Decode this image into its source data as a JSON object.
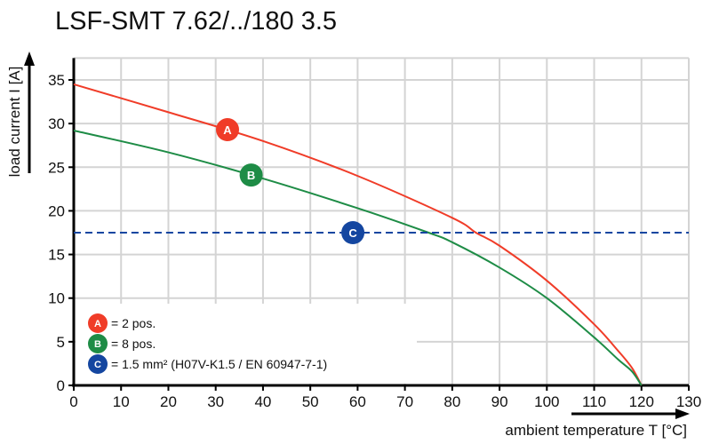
{
  "chart_data": {
    "type": "line",
    "title": "LSF-SMT 7.62/../180 3.5",
    "xlabel": "ambient temperature T [°C]",
    "ylabel": "load current I [A]",
    "xlim": [
      0,
      130
    ],
    "ylim": [
      0,
      37.5
    ],
    "xticks": [
      0,
      10,
      20,
      30,
      40,
      50,
      60,
      70,
      80,
      90,
      100,
      110,
      120,
      130
    ],
    "yticks": [
      0,
      5,
      10,
      15,
      20,
      25,
      30,
      35
    ],
    "grid": true,
    "series": [
      {
        "marker": "A",
        "color": "#f03c28",
        "x": [
          0,
          20,
          40,
          60,
          80,
          85,
          90,
          100,
          110,
          115,
          118,
          120
        ],
        "y": [
          34.5,
          31.3,
          28.0,
          24.0,
          19.2,
          17.5,
          16.0,
          12.0,
          7.0,
          4.0,
          2.0,
          0
        ]
      },
      {
        "marker": "B",
        "color": "#1e8c46",
        "x": [
          0,
          20,
          40,
          60,
          75,
          80,
          90,
          100,
          110,
          115,
          118,
          120
        ],
        "y": [
          29.2,
          26.7,
          23.7,
          20.3,
          17.5,
          16.4,
          13.5,
          10.0,
          5.5,
          3.0,
          1.6,
          0
        ]
      },
      {
        "marker": "C",
        "color": "#1446a0",
        "style": "dashed",
        "x": [
          0,
          130
        ],
        "y": [
          17.5,
          17.5
        ]
      }
    ],
    "markers": [
      {
        "label": "A",
        "x": 32.5,
        "y": 29.3,
        "color": "#f03c28"
      },
      {
        "label": "B",
        "x": 37.5,
        "y": 24.1,
        "color": "#1e8c46"
      },
      {
        "label": "C",
        "x": 59,
        "y": 17.5,
        "color": "#1446a0"
      }
    ],
    "legend": {
      "placement": "bottom-left",
      "items": [
        {
          "marker": "A",
          "text": "= 2 pos.",
          "color": "#f03c28"
        },
        {
          "marker": "B",
          "text": "= 8 pos.",
          "color": "#1e8c46"
        },
        {
          "marker": "C",
          "text": "= 1.5 mm² (H07V-K1.5 / EN 60947-7-1)",
          "color": "#1446a0"
        }
      ]
    }
  }
}
